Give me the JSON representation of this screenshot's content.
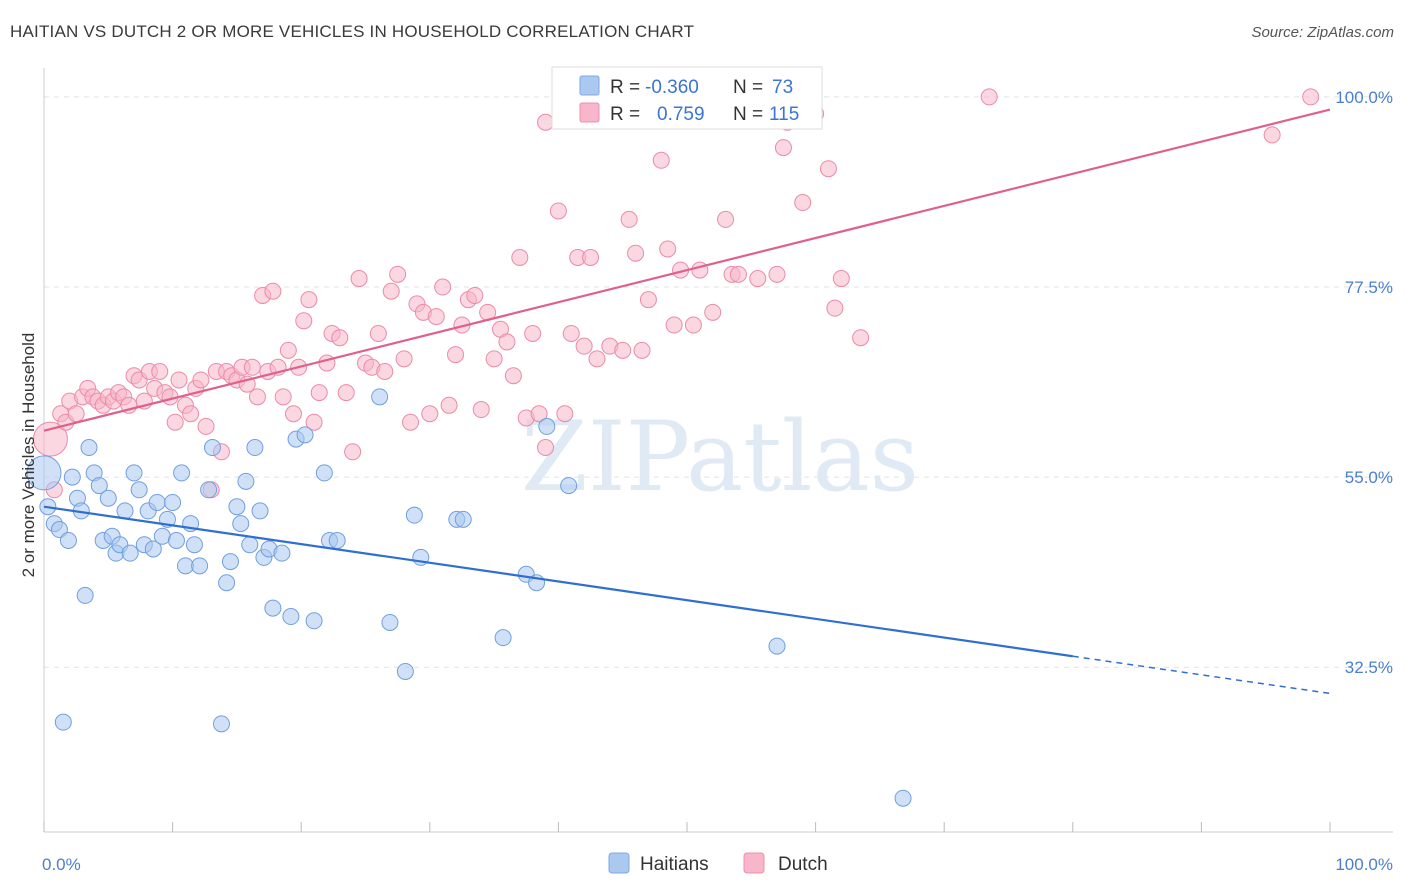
{
  "chart_data": {
    "type": "scatter",
    "title": "HAITIAN VS DUTCH 2 OR MORE VEHICLES IN HOUSEHOLD CORRELATION CHART",
    "source": "Source: ZipAtlas.com",
    "ylabel": "2 or more Vehicles in Household",
    "xlabel": "",
    "x_tick_labels": [
      "0.0%",
      "100.0%"
    ],
    "y_tick_labels": [
      "100.0%",
      "77.5%",
      "55.0%",
      "32.5%"
    ],
    "y_tick_values": [
      100.0,
      77.5,
      55.0,
      32.5
    ],
    "xlim": [
      0,
      100
    ],
    "ylim": [
      13,
      102
    ],
    "grid": true,
    "watermark": "ZIPatlas",
    "legend_stats": [
      {
        "r_label": "R =",
        "r_value": "-0.360",
        "n_label": "N =",
        "n_value": "73",
        "color": "#aac8f0"
      },
      {
        "r_label": "R =",
        "r_value": "0.759",
        "n_label": "N =",
        "n_value": "115",
        "color": "#f7b6c9"
      }
    ],
    "legend_bottom": [
      "Haitians",
      "Dutch"
    ],
    "series": [
      {
        "name": "Haitians",
        "color": "#aac8f0",
        "line_color": "#2f6fd0",
        "trend": {
          "x": [
            0,
            80
          ],
          "y": [
            51.5,
            33.8
          ],
          "dashed_to": [
            100,
            29.4
          ]
        },
        "points": [
          [
            0,
            55.5
          ],
          [
            0.3,
            51.5
          ],
          [
            0.8,
            49.5
          ],
          [
            1.2,
            48.8
          ],
          [
            1.5,
            26.0
          ],
          [
            1.9,
            47.5
          ],
          [
            2.2,
            55.0
          ],
          [
            2.6,
            52.5
          ],
          [
            2.9,
            51.0
          ],
          [
            3.2,
            41.0
          ],
          [
            3.5,
            58.5
          ],
          [
            3.9,
            55.5
          ],
          [
            4.3,
            54.0
          ],
          [
            4.6,
            47.5
          ],
          [
            5.0,
            52.5
          ],
          [
            5.3,
            48.0
          ],
          [
            5.6,
            46.0
          ],
          [
            5.9,
            47.0
          ],
          [
            6.3,
            51.0
          ],
          [
            6.7,
            46.0
          ],
          [
            7.0,
            55.5
          ],
          [
            7.4,
            53.5
          ],
          [
            7.8,
            47.0
          ],
          [
            8.1,
            51.0
          ],
          [
            8.5,
            46.5
          ],
          [
            8.8,
            52.0
          ],
          [
            9.2,
            48.0
          ],
          [
            9.6,
            50.0
          ],
          [
            10.0,
            52.0
          ],
          [
            10.3,
            47.5
          ],
          [
            10.7,
            55.5
          ],
          [
            11.0,
            44.5
          ],
          [
            11.4,
            49.5
          ],
          [
            11.7,
            47.0
          ],
          [
            12.1,
            44.5
          ],
          [
            12.8,
            53.5
          ],
          [
            13.1,
            58.5
          ],
          [
            13.8,
            25.8
          ],
          [
            14.2,
            42.5
          ],
          [
            14.5,
            45.0
          ],
          [
            15.0,
            51.5
          ],
          [
            15.3,
            49.5
          ],
          [
            15.7,
            54.5
          ],
          [
            16.0,
            47.0
          ],
          [
            16.4,
            58.5
          ],
          [
            16.8,
            51.0
          ],
          [
            17.1,
            45.5
          ],
          [
            17.5,
            46.5
          ],
          [
            17.8,
            39.5
          ],
          [
            18.5,
            46.0
          ],
          [
            19.2,
            38.5
          ],
          [
            19.6,
            59.5
          ],
          [
            20.3,
            60.0
          ],
          [
            21.0,
            38.0
          ],
          [
            21.8,
            55.5
          ],
          [
            22.2,
            47.5
          ],
          [
            22.8,
            47.5
          ],
          [
            26.1,
            64.5
          ],
          [
            26.9,
            37.8
          ],
          [
            28.1,
            32.0
          ],
          [
            28.8,
            50.5
          ],
          [
            29.3,
            45.5
          ],
          [
            32.1,
            50.0
          ],
          [
            32.6,
            50.0
          ],
          [
            35.7,
            36.0
          ],
          [
            37.5,
            43.5
          ],
          [
            38.3,
            42.5
          ],
          [
            39.1,
            61.0
          ],
          [
            40.8,
            54.0
          ],
          [
            57.0,
            35.0
          ],
          [
            66.8,
            17.0
          ]
        ]
      },
      {
        "name": "Dutch",
        "color": "#f7b6c9",
        "line_color": "#e0608d",
        "trend": {
          "x": [
            0,
            100
          ],
          "y": [
            60.5,
            98.5
          ]
        },
        "points": [
          [
            0.5,
            59.5
          ],
          [
            0.8,
            53.5
          ],
          [
            1.3,
            62.5
          ],
          [
            1.7,
            61.5
          ],
          [
            2.0,
            64.0
          ],
          [
            2.5,
            62.5
          ],
          [
            3.0,
            64.5
          ],
          [
            3.4,
            65.5
          ],
          [
            3.8,
            64.5
          ],
          [
            4.2,
            64.0
          ],
          [
            4.6,
            63.5
          ],
          [
            5.0,
            64.5
          ],
          [
            5.4,
            64.0
          ],
          [
            5.8,
            65.0
          ],
          [
            6.2,
            64.5
          ],
          [
            6.6,
            63.5
          ],
          [
            7.0,
            67.0
          ],
          [
            7.4,
            66.5
          ],
          [
            7.8,
            64.0
          ],
          [
            8.2,
            67.5
          ],
          [
            8.6,
            65.5
          ],
          [
            9.0,
            67.5
          ],
          [
            9.4,
            65.0
          ],
          [
            9.8,
            64.5
          ],
          [
            10.2,
            61.5
          ],
          [
            10.5,
            66.5
          ],
          [
            11.0,
            63.5
          ],
          [
            11.4,
            62.5
          ],
          [
            11.8,
            65.5
          ],
          [
            12.2,
            66.5
          ],
          [
            12.6,
            61.0
          ],
          [
            13.0,
            53.5
          ],
          [
            13.4,
            67.5
          ],
          [
            13.8,
            58.0
          ],
          [
            14.2,
            67.5
          ],
          [
            14.6,
            67.0
          ],
          [
            15.0,
            66.5
          ],
          [
            15.4,
            68.0
          ],
          [
            15.8,
            66.0
          ],
          [
            16.2,
            68.0
          ],
          [
            16.6,
            64.5
          ],
          [
            17.0,
            76.5
          ],
          [
            17.4,
            67.5
          ],
          [
            17.8,
            77.0
          ],
          [
            18.2,
            68.0
          ],
          [
            18.6,
            64.5
          ],
          [
            19.0,
            70.0
          ],
          [
            19.4,
            62.5
          ],
          [
            19.8,
            68.0
          ],
          [
            20.2,
            73.5
          ],
          [
            20.6,
            76.0
          ],
          [
            21.0,
            61.5
          ],
          [
            21.4,
            65.0
          ],
          [
            22.0,
            68.5
          ],
          [
            22.4,
            72.0
          ],
          [
            23.0,
            71.5
          ],
          [
            23.5,
            65.0
          ],
          [
            24.0,
            58.0
          ],
          [
            24.5,
            78.5
          ],
          [
            25.0,
            68.5
          ],
          [
            25.5,
            68.0
          ],
          [
            26.0,
            72.0
          ],
          [
            26.5,
            67.5
          ],
          [
            27.0,
            77.0
          ],
          [
            27.5,
            79.0
          ],
          [
            28.0,
            69.0
          ],
          [
            28.5,
            61.5
          ],
          [
            29.0,
            75.5
          ],
          [
            29.5,
            74.5
          ],
          [
            30.0,
            62.5
          ],
          [
            30.5,
            74.0
          ],
          [
            31.0,
            77.5
          ],
          [
            31.5,
            63.5
          ],
          [
            32.0,
            69.5
          ],
          [
            32.5,
            73.0
          ],
          [
            33.0,
            76.0
          ],
          [
            33.5,
            76.5
          ],
          [
            34.0,
            63.0
          ],
          [
            34.5,
            74.5
          ],
          [
            35.0,
            69.0
          ],
          [
            35.5,
            72.5
          ],
          [
            36.0,
            71.0
          ],
          [
            36.5,
            67.0
          ],
          [
            37.0,
            81.0
          ],
          [
            37.5,
            62.0
          ],
          [
            38.0,
            72.0
          ],
          [
            38.5,
            62.5
          ],
          [
            39.0,
            97.0
          ],
          [
            40.0,
            86.5
          ],
          [
            40.5,
            62.5
          ],
          [
            41.0,
            72.0
          ],
          [
            41.5,
            81.0
          ],
          [
            42.0,
            70.5
          ],
          [
            42.5,
            81.0
          ],
          [
            43.0,
            69.0
          ],
          [
            44.0,
            70.5
          ],
          [
            45.0,
            70.0
          ],
          [
            45.5,
            85.5
          ],
          [
            46.0,
            81.5
          ],
          [
            46.5,
            70.0
          ],
          [
            47.0,
            76.0
          ],
          [
            48.0,
            92.5
          ],
          [
            48.5,
            82.0
          ],
          [
            49.0,
            73.0
          ],
          [
            49.5,
            79.5
          ],
          [
            50.5,
            73.0
          ],
          [
            51.0,
            79.5
          ],
          [
            52.0,
            74.5
          ],
          [
            53.0,
            85.5
          ],
          [
            53.5,
            79.0
          ],
          [
            54.0,
            79.0
          ],
          [
            55.5,
            78.5
          ],
          [
            57.0,
            79.0
          ],
          [
            57.5,
            94.0
          ],
          [
            59.0,
            87.5
          ],
          [
            60.0,
            98.0
          ],
          [
            61.0,
            91.5
          ],
          [
            61.5,
            75.0
          ],
          [
            62.0,
            78.5
          ],
          [
            63.5,
            71.5
          ],
          [
            73.5,
            100.0
          ],
          [
            95.5,
            95.5
          ],
          [
            98.5,
            100.0
          ],
          [
            39.0,
            58.5
          ],
          [
            57.8,
            97.0
          ]
        ]
      }
    ]
  }
}
